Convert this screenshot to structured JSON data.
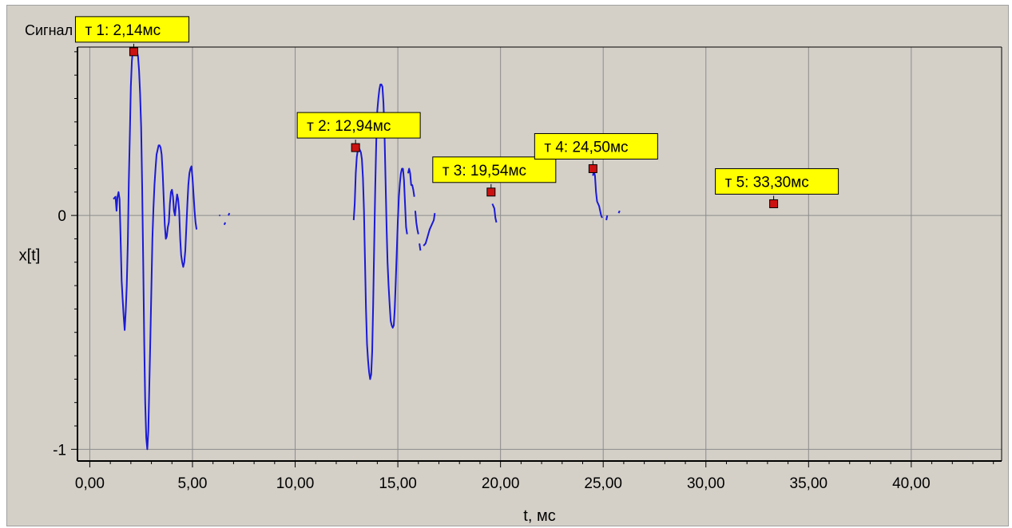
{
  "window_title": "Сигнал",
  "chart_data": {
    "type": "line",
    "title": "Сигнал",
    "xlabel": "t, мс",
    "ylabel": "x[t]",
    "xlim": [
      -0.6,
      44.4
    ],
    "ylim": [
      -1.05,
      0.72
    ],
    "x_ticks": [
      0,
      5,
      10,
      15,
      20,
      25,
      30,
      35,
      40
    ],
    "x_tick_labels": [
      "0,00",
      "5,00",
      "10,00",
      "15,00",
      "20,00",
      "25,00",
      "30,00",
      "35,00",
      "40,00"
    ],
    "y_ticks": [
      0,
      -1
    ],
    "y_tick_labels": [
      "0",
      "-1"
    ],
    "grid": true,
    "colors": {
      "signal": "#1a1ad6",
      "marker": "#cc1111",
      "label_bg": "#ffff00",
      "grid": "#8c8c8c"
    },
    "series": [
      {
        "segments": [
          [
            [
              1.15,
              0.07
            ],
            [
              1.25,
              0.08
            ],
            [
              1.3,
              0.02
            ],
            [
              1.35,
              0.08
            ],
            [
              1.4,
              0.1
            ],
            [
              1.45,
              0.07
            ],
            [
              1.5,
              -0.1
            ],
            [
              1.55,
              -0.28
            ],
            [
              1.6,
              -0.36
            ],
            [
              1.65,
              -0.43
            ],
            [
              1.7,
              -0.49
            ],
            [
              1.75,
              -0.41
            ],
            [
              1.8,
              -0.3
            ],
            [
              1.85,
              -0.12
            ],
            [
              1.9,
              0.15
            ],
            [
              1.95,
              0.35
            ],
            [
              2.0,
              0.55
            ],
            [
              2.05,
              0.66
            ],
            [
              2.1,
              0.71
            ],
            [
              2.15,
              0.71
            ],
            [
              2.2,
              0.71
            ],
            [
              2.25,
              0.71
            ],
            [
              2.3,
              0.7
            ],
            [
              2.35,
              0.68
            ],
            [
              2.4,
              0.62
            ],
            [
              2.45,
              0.52
            ],
            [
              2.5,
              0.38
            ],
            [
              2.55,
              0.12
            ],
            [
              2.6,
              -0.2
            ],
            [
              2.65,
              -0.55
            ],
            [
              2.7,
              -0.8
            ],
            [
              2.75,
              -0.95
            ],
            [
              2.8,
              -1.0
            ],
            [
              2.85,
              -0.92
            ],
            [
              2.9,
              -0.72
            ],
            [
              2.95,
              -0.52
            ],
            [
              3.0,
              -0.3
            ],
            [
              3.05,
              -0.1
            ],
            [
              3.1,
              0.03
            ],
            [
              3.15,
              0.13
            ],
            [
              3.2,
              0.2
            ],
            [
              3.25,
              0.26
            ],
            [
              3.3,
              0.28
            ],
            [
              3.35,
              0.3
            ],
            [
              3.4,
              0.3
            ],
            [
              3.45,
              0.29
            ],
            [
              3.5,
              0.26
            ],
            [
              3.55,
              0.18
            ],
            [
              3.6,
              0.07
            ],
            [
              3.65,
              -0.04
            ],
            [
              3.7,
              -0.1
            ],
            [
              3.75,
              -0.09
            ],
            [
              3.8,
              -0.05
            ],
            [
              3.85,
              -0.03
            ],
            [
              3.9,
              0.05
            ],
            [
              3.95,
              0.1
            ],
            [
              4.0,
              0.11
            ],
            [
              4.05,
              0.08
            ],
            [
              4.1,
              0.02
            ],
            [
              4.15,
              0.0
            ],
            [
              4.2,
              0.05
            ],
            [
              4.25,
              0.09
            ],
            [
              4.3,
              0.07
            ],
            [
              4.35,
              0.02
            ],
            [
              4.4,
              -0.1
            ],
            [
              4.45,
              -0.17
            ],
            [
              4.5,
              -0.2
            ],
            [
              4.55,
              -0.22
            ],
            [
              4.6,
              -0.2
            ],
            [
              4.65,
              -0.15
            ],
            [
              4.7,
              -0.05
            ],
            [
              4.75,
              0.05
            ],
            [
              4.8,
              0.13
            ],
            [
              4.85,
              0.18
            ],
            [
              4.9,
              0.2
            ],
            [
              4.95,
              0.21
            ],
            [
              5.0,
              0.16
            ],
            [
              5.05,
              0.09
            ],
            [
              5.1,
              0.02
            ],
            [
              5.15,
              -0.03
            ],
            [
              5.2,
              -0.06
            ]
          ],
          [
            [
              6.3,
              0.0
            ],
            [
              6.35,
              0.0
            ]
          ],
          [
            [
              6.55,
              -0.04
            ],
            [
              6.6,
              -0.03
            ]
          ],
          [
            [
              6.75,
              0.0
            ],
            [
              6.8,
              0.01
            ]
          ],
          [
            [
              12.85,
              -0.02
            ],
            [
              12.9,
              0.05
            ],
            [
              12.95,
              0.18
            ],
            [
              13.0,
              0.25
            ],
            [
              13.05,
              0.28
            ],
            [
              13.1,
              0.29
            ],
            [
              13.15,
              0.28
            ],
            [
              13.2,
              0.27
            ],
            [
              13.25,
              0.24
            ],
            [
              13.3,
              0.16
            ],
            [
              13.35,
              0.02
            ],
            [
              13.4,
              -0.2
            ],
            [
              13.45,
              -0.4
            ],
            [
              13.5,
              -0.55
            ],
            [
              13.55,
              -0.62
            ],
            [
              13.6,
              -0.67
            ],
            [
              13.65,
              -0.7
            ],
            [
              13.7,
              -0.68
            ],
            [
              13.75,
              -0.58
            ],
            [
              13.8,
              -0.38
            ],
            [
              13.85,
              -0.12
            ],
            [
              13.9,
              0.12
            ],
            [
              13.95,
              0.32
            ],
            [
              14.0,
              0.45
            ],
            [
              14.05,
              0.5
            ],
            [
              14.1,
              0.54
            ],
            [
              14.15,
              0.56
            ],
            [
              14.2,
              0.56
            ],
            [
              14.25,
              0.55
            ],
            [
              14.3,
              0.48
            ],
            [
              14.35,
              0.35
            ],
            [
              14.4,
              0.15
            ],
            [
              14.45,
              -0.05
            ],
            [
              14.5,
              -0.2
            ],
            [
              14.55,
              -0.3
            ],
            [
              14.6,
              -0.38
            ],
            [
              14.65,
              -0.45
            ],
            [
              14.7,
              -0.47
            ],
            [
              14.75,
              -0.48
            ],
            [
              14.8,
              -0.47
            ],
            [
              14.85,
              -0.4
            ],
            [
              14.9,
              -0.28
            ],
            [
              14.95,
              -0.15
            ],
            [
              15.0,
              -0.02
            ],
            [
              15.05,
              0.08
            ],
            [
              15.1,
              0.14
            ],
            [
              15.15,
              0.18
            ],
            [
              15.2,
              0.2
            ],
            [
              15.25,
              0.2
            ],
            [
              15.3,
              0.15
            ],
            [
              15.35,
              0.05
            ],
            [
              15.4,
              -0.05
            ],
            [
              15.45,
              -0.08
            ]
          ],
          [
            [
              15.5,
              0.18
            ],
            [
              15.55,
              0.2
            ],
            [
              15.6,
              0.18
            ],
            [
              15.65,
              0.13
            ],
            [
              15.7,
              0.13
            ],
            [
              15.75,
              0.11
            ],
            [
              15.8,
              0.08
            ]
          ],
          [
            [
              15.85,
              0.02
            ],
            [
              15.9,
              -0.03
            ],
            [
              15.95,
              -0.06
            ],
            [
              16.0,
              -0.08
            ]
          ],
          [
            [
              16.05,
              -0.12
            ],
            [
              16.1,
              -0.15
            ]
          ],
          [
            [
              16.25,
              -0.13
            ],
            [
              16.35,
              -0.12
            ],
            [
              16.45,
              -0.09
            ],
            [
              16.55,
              -0.06
            ],
            [
              16.65,
              -0.04
            ],
            [
              16.75,
              -0.02
            ],
            [
              16.8,
              0.01
            ]
          ],
          [
            [
              19.6,
              0.05
            ],
            [
              19.7,
              0.03
            ],
            [
              19.75,
              -0.01
            ],
            [
              19.8,
              -0.03
            ]
          ],
          [
            [
              24.5,
              0.17
            ],
            [
              24.55,
              0.19
            ],
            [
              24.6,
              0.17
            ],
            [
              24.65,
              0.1
            ],
            [
              24.7,
              0.06
            ],
            [
              24.8,
              0.04
            ],
            [
              24.9,
              0.0
            ],
            [
              24.95,
              -0.01
            ]
          ],
          [
            [
              25.15,
              -0.02
            ],
            [
              25.2,
              0.0
            ]
          ],
          [
            [
              25.75,
              0.01
            ],
            [
              25.8,
              0.02
            ]
          ]
        ]
      }
    ],
    "markers": [
      {
        "label": "т 1: 2,14мс",
        "x": 2.14,
        "y": 0.7
      },
      {
        "label": "т 2: 12,94мс",
        "x": 12.94,
        "y": 0.29
      },
      {
        "label": "т 3: 19,54мс",
        "x": 19.54,
        "y": 0.1
      },
      {
        "label": "т 4: 24,50мс",
        "x": 24.5,
        "y": 0.2
      },
      {
        "label": "т 5: 33,30мс",
        "x": 33.3,
        "y": 0.05
      }
    ]
  }
}
